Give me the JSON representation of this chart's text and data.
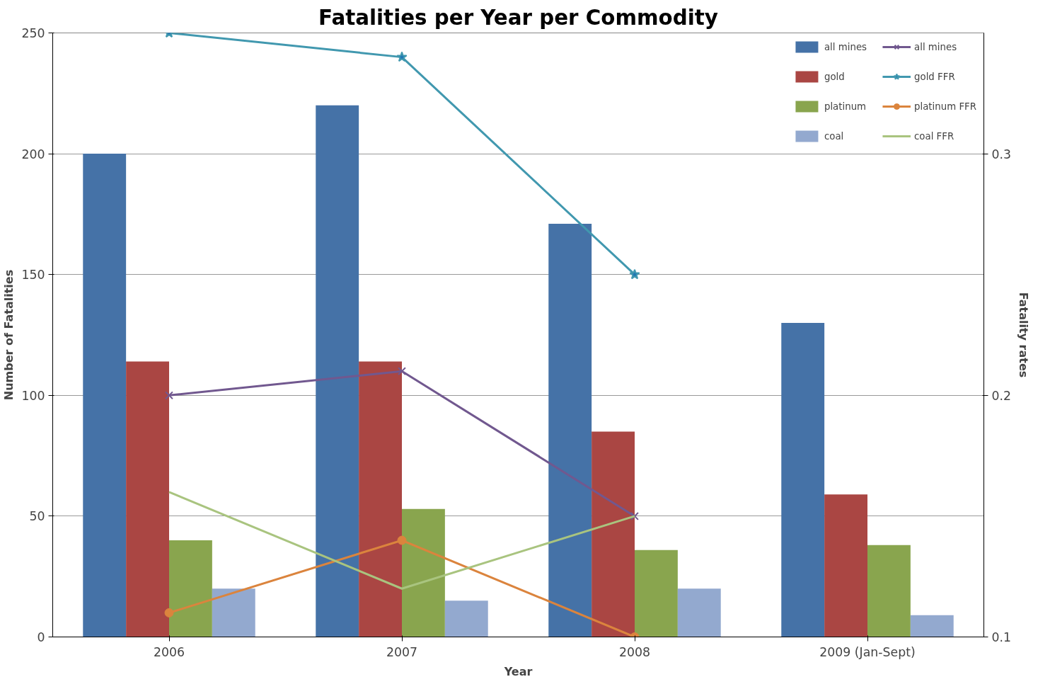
{
  "chart_data": {
    "type": "bar",
    "title": "Fatalities per Year per Commodity",
    "xlabel": "Year",
    "ylabel": "Number of Fatalities",
    "y2label": "Fatality rates",
    "categories": [
      "2006",
      "2007",
      "2008",
      "2009 (Jan-Sept)"
    ],
    "series": [
      {
        "name": "all mines",
        "color": "#4572a7",
        "values": [
          200,
          220,
          171,
          130
        ]
      },
      {
        "name": "gold",
        "color": "#aa4643",
        "values": [
          114,
          114,
          85,
          59
        ]
      },
      {
        "name": "platinum",
        "color": "#89a54e",
        "values": [
          40,
          53,
          36,
          38
        ]
      },
      {
        "name": "coal",
        "color": "#93a9cf",
        "values": [
          20,
          15,
          20,
          9
        ]
      },
      {
        "name": "all mines",
        "type": "line",
        "axis": "y2",
        "marker": "cross",
        "color": "#71588f",
        "values": [
          0.2,
          0.21,
          0.15,
          null
        ]
      },
      {
        "name": "gold FFR",
        "type": "line",
        "axis": "y2",
        "marker": "star",
        "color": "#4198af",
        "values": [
          0.35,
          0.34,
          0.25,
          null
        ]
      },
      {
        "name": "platinum FFR",
        "type": "line",
        "axis": "y2",
        "marker": "circle",
        "color": "#db843d",
        "values": [
          0.11,
          0.14,
          0.1,
          null
        ]
      },
      {
        "name": "coal FFR",
        "type": "line",
        "axis": "y2",
        "marker": "none",
        "color": "#a9c47f",
        "values": [
          0.16,
          0.12,
          0.15,
          null
        ]
      }
    ],
    "ylim": [
      0,
      250
    ],
    "yticks": [
      0,
      50,
      100,
      150,
      200,
      250
    ],
    "y2lim": [
      0.1,
      0.35
    ],
    "y2ticks": [
      0.1,
      0.2,
      0.3
    ],
    "grid": "y",
    "legend": "top right"
  }
}
